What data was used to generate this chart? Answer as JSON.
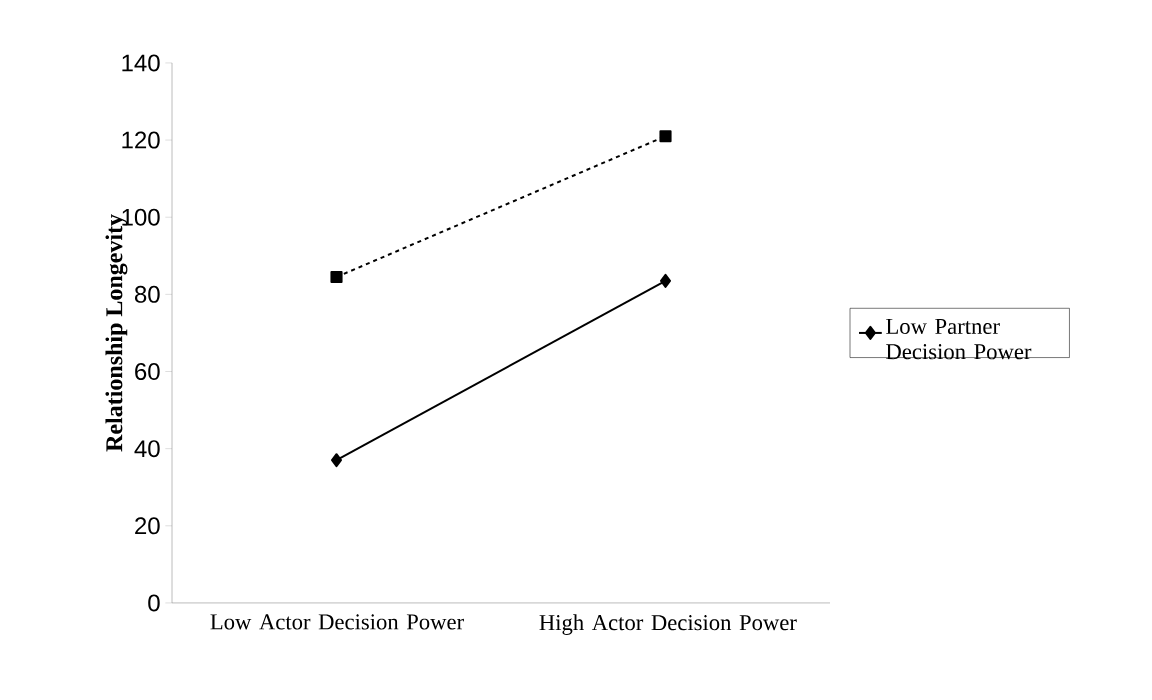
{
  "chart_data": {
    "type": "line",
    "ylabel": "Relationship Longevity",
    "categories": [
      "Low Actor Decision Power",
      "High Actor Decision Power"
    ],
    "series": [
      {
        "name": "Low Partner Decision Power",
        "color": "#000000",
        "values": [
          37,
          83.5
        ],
        "marker": "diamond",
        "line_style": "solid"
      },
      {
        "color": "#000000",
        "values": [
          84.5,
          121
        ],
        "marker": "square",
        "line_style": "dashed"
      }
    ],
    "ylim": [
      0,
      140
    ],
    "yticks": [
      0,
      20,
      40,
      60,
      80,
      100,
      120,
      140
    ],
    "legend": "right"
  }
}
